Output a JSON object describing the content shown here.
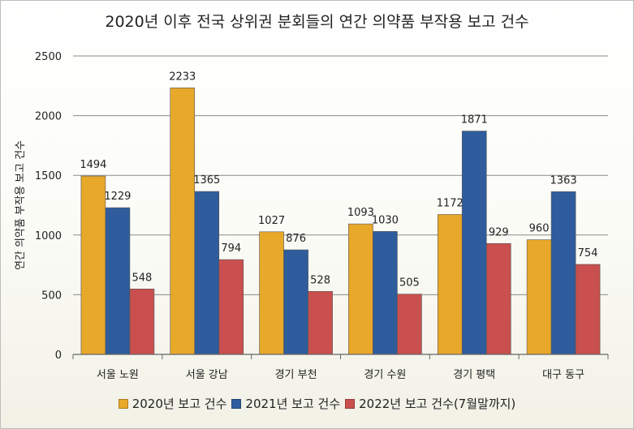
{
  "chart_data": {
    "type": "bar",
    "title": "2020년 이후 전국 상위권 분회들의 연간 의약품 부작용 보고 건수",
    "xlabel": "",
    "ylabel": "연간 의약품 부작용 보고 건수",
    "ylim": [
      0,
      2500
    ],
    "yticks": [
      "0",
      "500",
      "1000",
      "1500",
      "2000",
      "2500"
    ],
    "grid": true,
    "legend_position": "bottom",
    "categories": [
      "서울 노원",
      "서울 강남",
      "경기 부천",
      "경기 수원",
      "경기 평택",
      "대구 동구"
    ],
    "series": [
      {
        "name": "2020년 보고 건수",
        "color": "#E8A82A",
        "values": [
          1494,
          2233,
          1027,
          1093,
          1172,
          960
        ]
      },
      {
        "name": "2021년 보고 건수",
        "color": "#2F5C9C",
        "values": [
          1229,
          1365,
          876,
          1030,
          1871,
          1363
        ]
      },
      {
        "name": "2022년 보고 건수(7월말까지)",
        "color": "#C9504E",
        "values": [
          548,
          794,
          528,
          505,
          929,
          754
        ]
      }
    ]
  }
}
